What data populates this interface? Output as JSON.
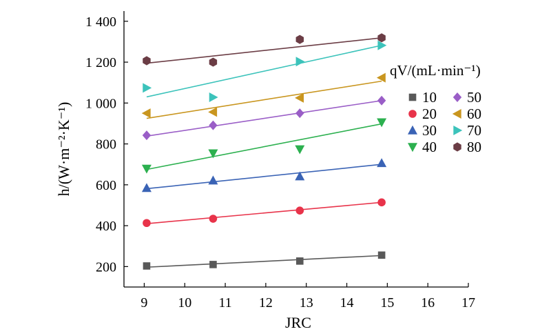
{
  "chart_data": {
    "type": "scatter",
    "xlabel": "JRC",
    "ylabel": "h/(W·m⁻²·K⁻¹)",
    "xlim": [
      8.5,
      17
    ],
    "ylim": [
      100,
      1450
    ],
    "x_ticks": [
      "9",
      "10",
      "11",
      "12",
      "13",
      "14",
      "15",
      "16",
      "17"
    ],
    "y_ticks": [
      "200",
      "400",
      "600",
      "800",
      "1 000",
      "1 200",
      "1 400"
    ],
    "legend_title": "qV/(mL·min⁻¹)",
    "legend_position": "right",
    "grid": false,
    "x": [
      9.06,
      10.7,
      12.84,
      14.86
    ],
    "series": [
      {
        "name": "10",
        "marker": "square",
        "color": "#595959",
        "values": [
          203,
          210,
          227,
          256
        ],
        "fit": [
          197,
          254
        ]
      },
      {
        "name": "20",
        "marker": "circle",
        "color": "#e8334a",
        "values": [
          413,
          434,
          474,
          514
        ],
        "fit": [
          410,
          514
        ]
      },
      {
        "name": "30",
        "marker": "triangle-up",
        "color": "#3a63b5",
        "values": [
          584,
          621,
          641,
          706
        ],
        "fit": [
          581,
          700
        ]
      },
      {
        "name": "40",
        "marker": "triangle-down",
        "color": "#2cb04f",
        "values": [
          679,
          754,
          774,
          906
        ],
        "fit": [
          675,
          898
        ]
      },
      {
        "name": "50",
        "marker": "diamond",
        "color": "#9a5ec7",
        "values": [
          842,
          891,
          950,
          1012
        ],
        "fit": [
          838,
          1012
        ]
      },
      {
        "name": "60",
        "marker": "triangle-left",
        "color": "#c9961f",
        "values": [
          950,
          956,
          1025,
          1124
        ],
        "fit": [
          925,
          1107
        ]
      },
      {
        "name": "70",
        "marker": "triangle-right",
        "color": "#3cc3bb",
        "values": [
          1074,
          1028,
          1203,
          1282
        ],
        "fit": [
          1030,
          1282
        ]
      },
      {
        "name": "80",
        "marker": "hexagon",
        "color": "#6b3d45",
        "values": [
          1207,
          1200,
          1311,
          1319
        ],
        "fit": [
          1195,
          1319
        ]
      }
    ]
  }
}
